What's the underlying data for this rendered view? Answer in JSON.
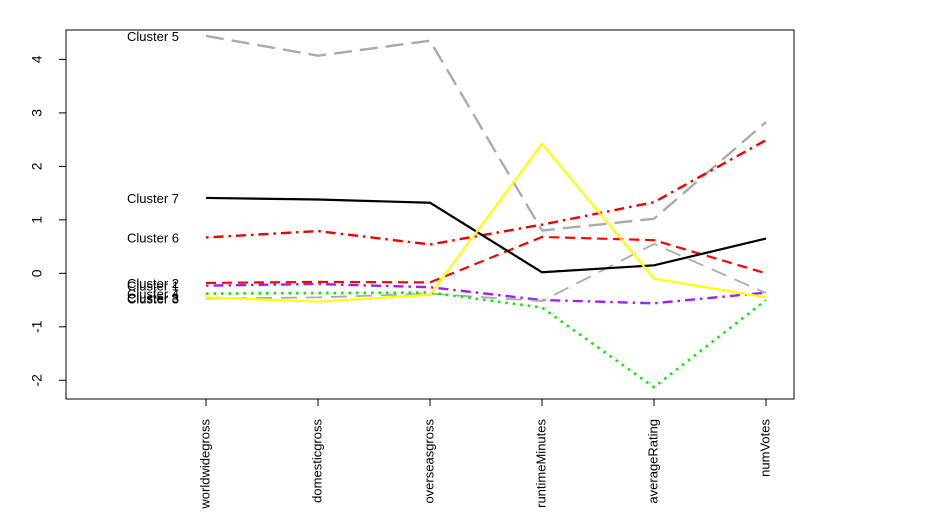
{
  "chart_data": {
    "type": "line",
    "title": "",
    "xlabel": "",
    "ylabel": "",
    "categories": [
      "worldwidegross",
      "domesticgross",
      "overseasgross",
      "runtimeMinutes",
      "averageRating",
      "numVotes"
    ],
    "ylim": [
      -2.35,
      4.55
    ],
    "yticks": [
      -2,
      -1,
      0,
      1,
      2,
      3,
      4
    ],
    "ytick_labels": [
      "-2",
      "-1",
      "0",
      "1",
      "2",
      "3",
      "4"
    ],
    "grid": false,
    "series": [
      {
        "name": "Cluster 1",
        "values": [
          -0.23,
          -0.2,
          -0.26,
          -0.5,
          -0.56,
          -0.36
        ],
        "color": "#a020f0",
        "dash": "dotdash"
      },
      {
        "name": "Cluster 2",
        "values": [
          -0.18,
          -0.16,
          -0.17,
          0.68,
          0.62,
          0.0
        ],
        "color": "#ff0000",
        "dash": "dashed"
      },
      {
        "name": "Cluster 3",
        "values": [
          -0.47,
          -0.45,
          -0.38,
          -0.52,
          0.55,
          -0.37
        ],
        "color": "#aaaaaa",
        "dash": "longdash-thin"
      },
      {
        "name": "Cluster 4",
        "values": [
          -0.38,
          -0.37,
          -0.36,
          -0.64,
          -2.13,
          -0.5
        ],
        "color": "#00ee00",
        "dash": "dotted"
      },
      {
        "name": "Cluster 5",
        "values": [
          4.44,
          4.07,
          4.35,
          0.8,
          1.02,
          2.83
        ],
        "color": "#aaaaaa",
        "dash": "longdash"
      },
      {
        "name": "Cluster 6",
        "values": [
          0.67,
          0.79,
          0.54,
          0.91,
          1.33,
          2.49
        ],
        "color": "#ee0000",
        "dash": "dotdash"
      },
      {
        "name": "Cluster 7",
        "values": [
          1.41,
          1.38,
          1.32,
          0.02,
          0.15,
          0.65
        ],
        "color": "#000000",
        "dash": "solid"
      },
      {
        "name": "Cluster 8",
        "values": [
          -0.45,
          -0.53,
          -0.4,
          2.42,
          -0.1,
          -0.45
        ],
        "color": "#ffff00",
        "dash": "solid"
      }
    ]
  }
}
